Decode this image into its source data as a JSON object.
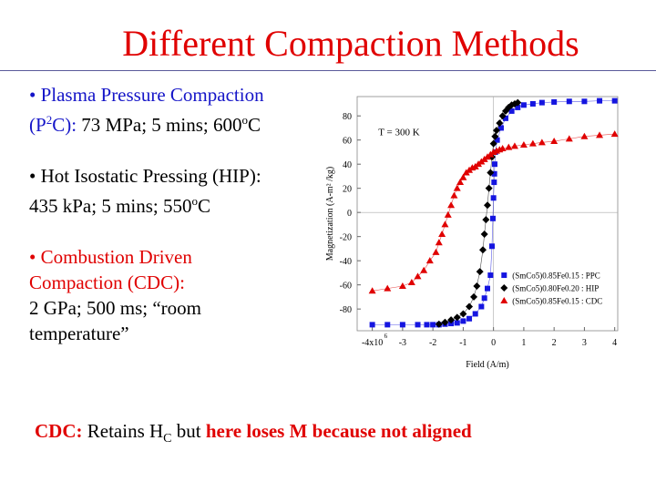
{
  "slide": {
    "title": "Different Compaction Methods",
    "ppc_name": "• Plasma Pressure Compaction",
    "ppc_abbr_pre": "(P",
    "ppc_abbr_sup": "2",
    "ppc_abbr_post": "C):",
    "ppc_params": " 73 MPa; 5 mins; 600",
    "ppc_deg": "o",
    "ppc_unit": "C",
    "hip_line1": "• Hot Isostatic Pressing (HIP):",
    "hip_params": " 435 kPa; 5 mins; 550",
    "hip_deg": "o",
    "hip_unit": "C",
    "cdc_name_1": "• Combustion Driven",
    "cdc_name_2": "Compaction (CDC):",
    "cdc_params_1": "2 GPa; 500 ms; “room",
    "cdc_params_2": "temperature”",
    "bottom_cdc": "CDC:",
    "bottom_retains": " Retains H",
    "bottom_sub": "C",
    "bottom_but": " but ",
    "bottom_loses": "here loses M because not aligned"
  },
  "chart_data": {
    "type": "scatter",
    "xlabel": "Field (A/m)",
    "ylabel": "Magnetization (A-m² /kg)",
    "annotation": "T = 300 K",
    "xlim": [
      -4.5,
      4.1
    ],
    "ylim": [
      -98,
      96
    ],
    "x_ticks": [
      -4,
      -3,
      -2,
      -1,
      0,
      1,
      2,
      3,
      4
    ],
    "x_tick_labels": [
      "-4x10",
      "-3",
      "-2",
      "-1",
      "0",
      "1",
      "2",
      "3",
      "4"
    ],
    "x_tick_exponent": "6",
    "y_ticks": [
      -80,
      -60,
      -40,
      -20,
      0,
      20,
      40,
      60,
      80
    ],
    "legend_position": "bottom-right",
    "series": [
      {
        "name": "(SmCo5)0.85Fe0.15 : PPC",
        "marker": "square",
        "color": "#1515e0",
        "points": [
          [
            -4,
            -93
          ],
          [
            -3.5,
            -93
          ],
          [
            -3,
            -93
          ],
          [
            -2.5,
            -93
          ],
          [
            -2.2,
            -93
          ],
          [
            -2,
            -93
          ],
          [
            -1.8,
            -93
          ],
          [
            -1.6,
            -92.5
          ],
          [
            -1.4,
            -92
          ],
          [
            -1.2,
            -91.5
          ],
          [
            -1,
            -90
          ],
          [
            -0.8,
            -88
          ],
          [
            -0.6,
            -84
          ],
          [
            -0.4,
            -78
          ],
          [
            -0.3,
            -71
          ],
          [
            -0.2,
            -63
          ],
          [
            -0.1,
            -52
          ],
          [
            -0.05,
            -28
          ],
          [
            -0.02,
            -5
          ],
          [
            0,
            12
          ],
          [
            0.02,
            25
          ],
          [
            0.03,
            32
          ],
          [
            0.04,
            40
          ],
          [
            0.06,
            50
          ],
          [
            0.12,
            60
          ],
          [
            0.25,
            70
          ],
          [
            0.4,
            78
          ],
          [
            0.6,
            84
          ],
          [
            0.8,
            87
          ],
          [
            1.0,
            89
          ],
          [
            1.3,
            90
          ],
          [
            1.6,
            91
          ],
          [
            2,
            91.5
          ],
          [
            2.5,
            92
          ],
          [
            3,
            92
          ],
          [
            3.5,
            92.5
          ],
          [
            4,
            92.5
          ]
        ]
      },
      {
        "name": "(SmCo5)0.80Fe0.20 : HIP",
        "marker": "diamond",
        "color": "#000000",
        "points": [
          [
            -1.8,
            -92.5
          ],
          [
            -1.6,
            -91
          ],
          [
            -1.4,
            -89
          ],
          [
            -1.2,
            -87
          ],
          [
            -1,
            -84
          ],
          [
            -0.8,
            -78
          ],
          [
            -0.65,
            -70
          ],
          [
            -0.55,
            -61
          ],
          [
            -0.45,
            -49
          ],
          [
            -0.35,
            -31
          ],
          [
            -0.3,
            -18
          ],
          [
            -0.25,
            -6
          ],
          [
            -0.2,
            6
          ],
          [
            -0.15,
            20
          ],
          [
            -0.1,
            33
          ],
          [
            -0.05,
            46
          ],
          [
            0,
            57
          ],
          [
            0.05,
            63
          ],
          [
            0.1,
            68
          ],
          [
            0.2,
            74
          ],
          [
            0.3,
            80
          ],
          [
            0.4,
            84
          ],
          [
            0.5,
            87
          ],
          [
            0.6,
            89
          ],
          [
            0.7,
            90
          ],
          [
            0.8,
            91
          ]
        ]
      },
      {
        "name": "(SmCo5)0.85Fe0.15 : CDC",
        "marker": "triangle",
        "color": "#e00000",
        "points": [
          [
            -4,
            -65
          ],
          [
            -3.5,
            -63
          ],
          [
            -3,
            -61
          ],
          [
            -2.7,
            -58
          ],
          [
            -2.5,
            -53
          ],
          [
            -2.3,
            -48
          ],
          [
            -2.1,
            -40
          ],
          [
            -1.9,
            -33
          ],
          [
            -1.8,
            -25
          ],
          [
            -1.7,
            -18
          ],
          [
            -1.6,
            -10
          ],
          [
            -1.5,
            -2
          ],
          [
            -1.4,
            6
          ],
          [
            -1.3,
            14
          ],
          [
            -1.2,
            20
          ],
          [
            -1.1,
            25
          ],
          [
            -1,
            29
          ],
          [
            -0.9,
            33
          ],
          [
            -0.8,
            35
          ],
          [
            -0.7,
            37
          ],
          [
            -0.6,
            38
          ],
          [
            -0.5,
            40
          ],
          [
            -0.4,
            42
          ],
          [
            -0.3,
            44
          ],
          [
            -0.2,
            46
          ],
          [
            -0.1,
            48
          ],
          [
            0,
            50
          ],
          [
            0.1,
            51
          ],
          [
            0.2,
            52
          ],
          [
            0.3,
            53
          ],
          [
            0.5,
            54
          ],
          [
            0.7,
            55
          ],
          [
            1.0,
            56
          ],
          [
            1.3,
            57
          ],
          [
            1.6,
            58
          ],
          [
            2.0,
            59
          ],
          [
            2.5,
            61
          ],
          [
            3,
            63
          ],
          [
            3.5,
            64
          ],
          [
            4,
            65
          ]
        ]
      }
    ]
  }
}
